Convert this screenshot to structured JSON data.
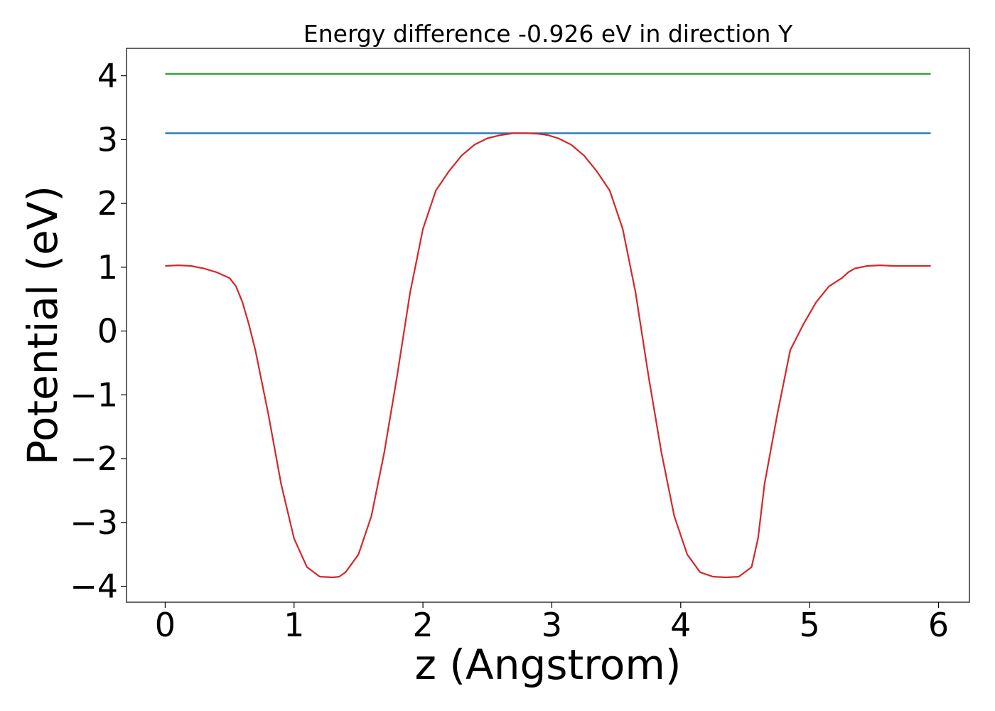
{
  "chart_data": {
    "type": "line",
    "title": "Energy difference -0.926 eV in direction Y",
    "xlabel": "z (Angstrom)",
    "ylabel": "Potential (eV)",
    "xlim": [
      -0.3,
      6.24
    ],
    "ylim": [
      -4.25,
      4.43
    ],
    "xticks": [
      0,
      1,
      2,
      3,
      4,
      5,
      6
    ],
    "xtick_labels": [
      "0",
      "1",
      "2",
      "3",
      "4",
      "5",
      "6"
    ],
    "yticks": [
      -4,
      -3,
      -2,
      -1,
      0,
      1,
      2,
      3,
      4
    ],
    "ytick_labels": [
      "−4",
      "−3",
      "−2",
      "−1",
      "0",
      "1",
      "2",
      "3",
      "4"
    ],
    "grid": false,
    "series": [
      {
        "color": "#2ca02c",
        "x": [
          0.0,
          5.94
        ],
        "y": [
          4.03,
          4.03
        ]
      },
      {
        "color": "#1f77b4",
        "x": [
          0.0,
          5.94
        ],
        "y": [
          3.1,
          3.1
        ]
      },
      {
        "color": "#d62728",
        "x": [
          0.0,
          0.1,
          0.2,
          0.3,
          0.4,
          0.5,
          0.55,
          0.6,
          0.65,
          0.7,
          0.8,
          0.9,
          1.0,
          1.1,
          1.2,
          1.3,
          1.35,
          1.4,
          1.5,
          1.6,
          1.7,
          1.8,
          1.9,
          2.0,
          2.1,
          2.2,
          2.3,
          2.4,
          2.5,
          2.6,
          2.7,
          2.8,
          2.9,
          2.97,
          3.05,
          3.15,
          3.25,
          3.35,
          3.45,
          3.55,
          3.65,
          3.75,
          3.85,
          3.95,
          4.05,
          4.15,
          4.25,
          4.35,
          4.45,
          4.55,
          4.6,
          4.65,
          4.75,
          4.85,
          4.95,
          5.05,
          5.15,
          5.25,
          5.3,
          5.35,
          5.45,
          5.55,
          5.65,
          5.75,
          5.85,
          5.94
        ],
        "y": [
          1.02,
          1.03,
          1.02,
          0.98,
          0.92,
          0.83,
          0.7,
          0.45,
          0.1,
          -0.3,
          -1.3,
          -2.4,
          -3.25,
          -3.7,
          -3.85,
          -3.86,
          -3.85,
          -3.78,
          -3.5,
          -2.9,
          -1.9,
          -0.7,
          0.6,
          1.6,
          2.2,
          2.5,
          2.75,
          2.92,
          3.02,
          3.07,
          3.1,
          3.1,
          3.09,
          3.07,
          3.02,
          2.92,
          2.75,
          2.5,
          2.2,
          1.6,
          0.6,
          -0.7,
          -1.9,
          -2.9,
          -3.5,
          -3.78,
          -3.85,
          -3.86,
          -3.85,
          -3.7,
          -3.25,
          -2.4,
          -1.3,
          -0.3,
          0.1,
          0.45,
          0.7,
          0.83,
          0.92,
          0.98,
          1.02,
          1.03,
          1.02,
          1.02,
          1.02,
          1.02
        ]
      }
    ]
  }
}
